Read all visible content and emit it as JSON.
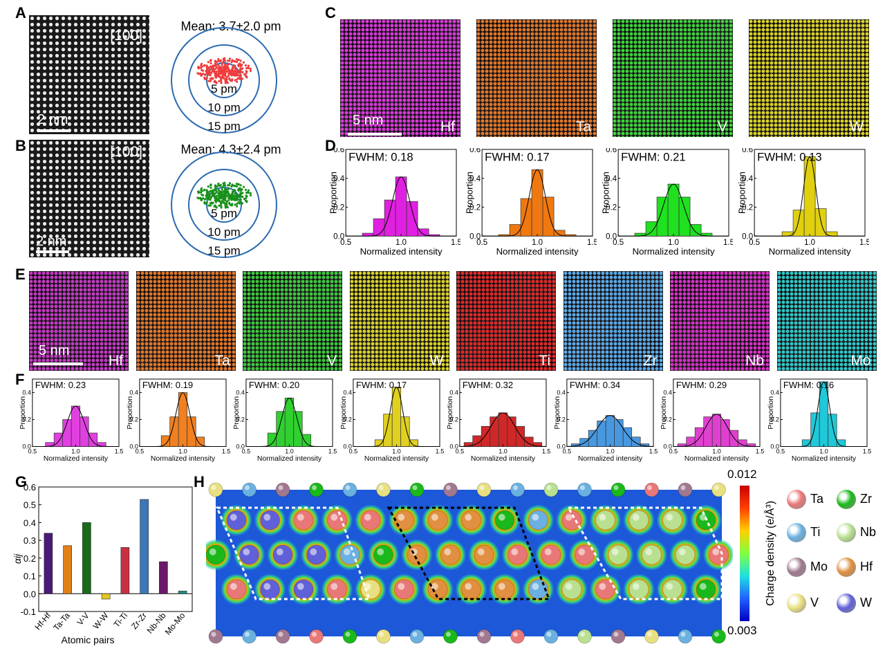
{
  "panels": {
    "A": "A",
    "B": "B",
    "C": "C",
    "D": "D",
    "E": "E",
    "F": "F",
    "G": "G",
    "H": "H"
  },
  "stem": {
    "direction": "[100]",
    "scale_label": "2 nm",
    "A": {
      "mean": "Mean: 3.7±2.0 pm",
      "dot_color": "#f03c3c"
    },
    "B": {
      "mean": "Mean: 4.3±2.4 pm",
      "dot_color": "#18901a"
    },
    "rings": [
      "5 pm",
      "10 pm",
      "15 pm"
    ]
  },
  "maps_c": {
    "scale_label": "5 nm",
    "items": [
      {
        "label": "Hf",
        "color": "#d83ad8"
      },
      {
        "label": "Ta",
        "color": "#e0782a"
      },
      {
        "label": "V",
        "color": "#3ed23e"
      },
      {
        "label": "W",
        "color": "#d8d228"
      }
    ]
  },
  "maps_e": {
    "scale_label": "5 nm",
    "items": [
      {
        "label": "Hf",
        "color": "#c43ac4"
      },
      {
        "label": "Ta",
        "color": "#e0782a"
      },
      {
        "label": "V",
        "color": "#3ec83e"
      },
      {
        "label": "W",
        "color": "#d8d228"
      },
      {
        "label": "Ti",
        "color": "#e02a2a"
      },
      {
        "label": "Zr",
        "color": "#5aaae8"
      },
      {
        "label": "Nb",
        "color": "#d830c8"
      },
      {
        "label": "Mo",
        "color": "#2ec8c8"
      }
    ]
  },
  "hist_axes": {
    "ylabel": "Proportion",
    "xlabel": "Normalized intensity",
    "xticks": [
      "0.5",
      "1.0",
      "1.5"
    ]
  },
  "chart_data": [
    {
      "type": "bar",
      "panel": "D",
      "element": "Hf",
      "title": "FWHM: 0.18",
      "color": "#e020e0",
      "x": [
        0.7,
        0.8,
        0.9,
        1.0,
        1.1,
        1.2,
        1.3
      ],
      "values": [
        0.02,
        0.12,
        0.25,
        0.41,
        0.24,
        0.05,
        0.01
      ],
      "ylim": [
        0,
        0.6
      ],
      "yticks": [
        "0.0",
        "0.2",
        "0.4",
        "0.6"
      ]
    },
    {
      "type": "bar",
      "panel": "D",
      "element": "Ta",
      "title": "FWHM: 0.17",
      "color": "#f07810",
      "x": [
        0.7,
        0.8,
        0.9,
        1.0,
        1.1,
        1.2,
        1.3
      ],
      "values": [
        0.01,
        0.08,
        0.26,
        0.46,
        0.27,
        0.04,
        0.01
      ],
      "ylim": [
        0,
        0.6
      ],
      "yticks": [
        "0.0",
        "0.2",
        "0.4",
        "0.6"
      ]
    },
    {
      "type": "bar",
      "panel": "D",
      "element": "V",
      "title": "FWHM: 0.21",
      "color": "#20e020",
      "x": [
        0.7,
        0.8,
        0.9,
        1.0,
        1.1,
        1.2,
        1.3
      ],
      "values": [
        0.02,
        0.1,
        0.27,
        0.36,
        0.27,
        0.08,
        0.02
      ],
      "ylim": [
        0,
        0.6
      ],
      "yticks": [
        "0.0",
        "0.2",
        "0.4",
        "0.6"
      ]
    },
    {
      "type": "bar",
      "panel": "D",
      "element": "W",
      "title": "FWHM: 0.13",
      "color": "#e0d010",
      "x": [
        0.8,
        0.9,
        1.0,
        1.1,
        1.2
      ],
      "values": [
        0.03,
        0.18,
        0.55,
        0.19,
        0.03
      ],
      "ylim": [
        0,
        0.6
      ],
      "yticks": [
        "0.0",
        "0.2",
        "0.4",
        "0.6"
      ]
    },
    {
      "type": "bar",
      "panel": "F",
      "element": "Hf",
      "title": "FWHM: 0.23",
      "color": "#e040e0",
      "x": [
        0.7,
        0.8,
        0.9,
        1.0,
        1.1,
        1.2,
        1.3
      ],
      "values": [
        0.03,
        0.1,
        0.2,
        0.3,
        0.22,
        0.1,
        0.03
      ],
      "ylim": [
        0,
        0.5
      ],
      "yticks": [
        "0.0",
        "0.2",
        "0.4"
      ]
    },
    {
      "type": "bar",
      "panel": "F",
      "element": "Ta",
      "title": "FWHM: 0.19",
      "color": "#f08020",
      "x": [
        0.8,
        0.9,
        1.0,
        1.1,
        1.2
      ],
      "values": [
        0.08,
        0.22,
        0.4,
        0.22,
        0.07
      ],
      "ylim": [
        0,
        0.5
      ],
      "yticks": [
        "0.0",
        "0.2",
        "0.4"
      ]
    },
    {
      "type": "bar",
      "panel": "F",
      "element": "V",
      "title": "FWHM: 0.20",
      "color": "#30d030",
      "x": [
        0.8,
        0.9,
        1.0,
        1.1,
        1.2
      ],
      "values": [
        0.1,
        0.26,
        0.36,
        0.26,
        0.09
      ],
      "ylim": [
        0,
        0.5
      ],
      "yticks": [
        "0.0",
        "0.2",
        "0.4"
      ]
    },
    {
      "type": "bar",
      "panel": "F",
      "element": "W",
      "title": "FWHM: 0.17",
      "color": "#e0d020",
      "x": [
        0.8,
        0.9,
        1.0,
        1.1,
        1.2
      ],
      "values": [
        0.05,
        0.24,
        0.44,
        0.22,
        0.05
      ],
      "ylim": [
        0,
        0.5
      ],
      "yticks": [
        "0.0",
        "0.2",
        "0.4"
      ]
    },
    {
      "type": "bar",
      "panel": "F",
      "element": "Ti",
      "title": "FWHM: 0.32",
      "color": "#d02828",
      "x": [
        0.6,
        0.7,
        0.8,
        0.9,
        1.0,
        1.1,
        1.2,
        1.3,
        1.4
      ],
      "values": [
        0.03,
        0.08,
        0.15,
        0.22,
        0.25,
        0.22,
        0.15,
        0.07,
        0.03
      ],
      "ylim": [
        0,
        0.5
      ],
      "yticks": [
        "0.0",
        "0.2",
        "0.4"
      ]
    },
    {
      "type": "bar",
      "panel": "F",
      "element": "Zr",
      "title": "FWHM: 0.34",
      "color": "#4898e0",
      "x": [
        0.6,
        0.7,
        0.8,
        0.9,
        1.0,
        1.1,
        1.2,
        1.3,
        1.4
      ],
      "values": [
        0.02,
        0.06,
        0.12,
        0.19,
        0.23,
        0.2,
        0.14,
        0.07,
        0.02
      ],
      "ylim": [
        0,
        0.5
      ],
      "yticks": [
        "0.0",
        "0.2",
        "0.4"
      ]
    },
    {
      "type": "bar",
      "panel": "F",
      "element": "Nb",
      "title": "FWHM: 0.29",
      "color": "#e040d0",
      "x": [
        0.6,
        0.7,
        0.8,
        0.9,
        1.0,
        1.1,
        1.2,
        1.3,
        1.4
      ],
      "values": [
        0.02,
        0.07,
        0.14,
        0.22,
        0.24,
        0.2,
        0.12,
        0.05,
        0.02
      ],
      "ylim": [
        0,
        0.5
      ],
      "yticks": [
        "0.0",
        "0.2",
        "0.4"
      ]
    },
    {
      "type": "bar",
      "panel": "F",
      "element": "Mo",
      "title": "FWHM: 0.16",
      "color": "#20c8d8",
      "x": [
        0.8,
        0.9,
        1.0,
        1.1,
        1.2
      ],
      "values": [
        0.05,
        0.25,
        0.48,
        0.24,
        0.05
      ],
      "ylim": [
        0,
        0.5
      ],
      "yticks": [
        "0.0",
        "0.2",
        "0.4"
      ]
    },
    {
      "type": "bar",
      "panel": "G",
      "categories": [
        "Hf-Hf",
        "Ta-Ta",
        "V-V",
        "W-W",
        "Ti-Ti",
        "Zr-Zr",
        "Nb-Nb",
        "Mo-Mo"
      ],
      "values": [
        0.34,
        0.27,
        0.4,
        -0.03,
        0.26,
        0.53,
        0.18,
        0.015
      ],
      "colors": [
        "#4a1a78",
        "#e08018",
        "#1a6a1a",
        "#e8c820",
        "#c83040",
        "#3a78b8",
        "#6a1a6a",
        "#1a9080"
      ],
      "xlabel": "Atomic pairs",
      "ylabel": "αij",
      "ylim": [
        -0.1,
        0.6
      ],
      "yticks": [
        "-0.1",
        "0.0",
        "0.1",
        "0.2",
        "0.3",
        "0.4",
        "0.5",
        "0.6"
      ]
    }
  ],
  "charge": {
    "colorbar_max": "0.012",
    "colorbar_min": "0.003",
    "colorbar_label": "Charge density (e/Å³)",
    "legend": [
      {
        "label": "Ta",
        "color": "#e87878"
      },
      {
        "label": "Zr",
        "color": "#1ab81a"
      },
      {
        "label": "Ti",
        "color": "#6ab0e0"
      },
      {
        "label": "Nb",
        "color": "#b8e090"
      },
      {
        "label": "Mo",
        "color": "#a07890"
      },
      {
        "label": "Hf",
        "color": "#e09040"
      },
      {
        "label": "V",
        "color": "#e8e080"
      },
      {
        "label": "W",
        "color": "#6060d8"
      }
    ]
  }
}
